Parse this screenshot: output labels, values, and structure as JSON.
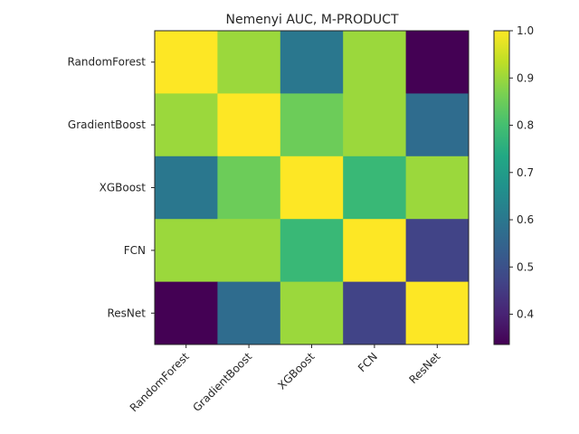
{
  "chart_data": {
    "type": "heatmap",
    "title": "Nemenyi AUC, M-PRODUCT",
    "xlabel": "",
    "ylabel": "",
    "rows": [
      "RandomForest",
      "GradientBoost",
      "XGBoost",
      "FCN",
      "ResNet"
    ],
    "columns": [
      "RandomForest",
      "GradientBoost",
      "XGBoost",
      "FCN",
      "ResNet"
    ],
    "values": [
      [
        1.0,
        0.9,
        0.6,
        0.9,
        0.336
      ],
      [
        0.9,
        1.0,
        0.85,
        0.9,
        0.57
      ],
      [
        0.6,
        0.85,
        1.0,
        0.78,
        0.9
      ],
      [
        0.9,
        0.9,
        0.78,
        1.0,
        0.47
      ],
      [
        0.336,
        0.57,
        0.9,
        0.47,
        1.0
      ]
    ],
    "colorscale": "viridis",
    "vmin": 0.336,
    "vmax": 1.0,
    "colorbar_ticks": [
      1.0,
      0.9,
      0.8,
      0.7,
      0.6,
      0.5,
      0.4
    ],
    "colorbar_tick_labels": [
      "1.0",
      "0.9",
      "0.8",
      "0.7",
      "0.6",
      "0.5",
      "0.4"
    ],
    "grid": false,
    "colorbar_placement": "right"
  }
}
